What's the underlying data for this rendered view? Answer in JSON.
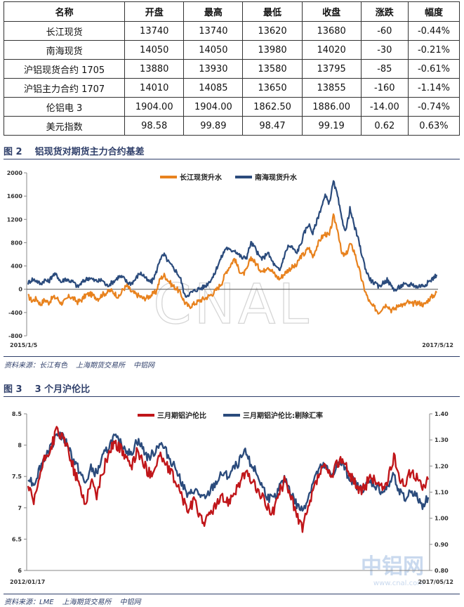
{
  "table": {
    "headers": [
      "名称",
      "开盘",
      "最高",
      "最低",
      "收盘",
      "涨跌",
      "幅度"
    ],
    "rows": [
      [
        "长江现货",
        "13740",
        "13740",
        "13620",
        "13680",
        "-60",
        "-0.44%"
      ],
      [
        "南海现货",
        "14050",
        "14050",
        "13980",
        "14020",
        "-30",
        "-0.21%"
      ],
      [
        "沪铝现货合约 1705",
        "13880",
        "13930",
        "13580",
        "13795",
        "-85",
        "-0.61%"
      ],
      [
        "沪铝主力合约 1707",
        "14010",
        "14085",
        "13650",
        "13855",
        "-160",
        "-1.14%"
      ],
      [
        "伦铝电 3",
        "1904.00",
        "1904.00",
        "1862.50",
        "1886.00",
        "-14.00",
        "-0.74%"
      ],
      [
        "美元指数",
        "98.58",
        "99.89",
        "98.47",
        "99.19",
        "0.62",
        "0.63%"
      ]
    ]
  },
  "fig2": {
    "number": "图 2",
    "title": "铝现货对期货主力合约基差",
    "source": [
      "资料来源：长江有色",
      "上海期货交易所",
      "中铝网"
    ]
  },
  "fig3": {
    "number": "图 3",
    "title": "3 个月沪伦比",
    "source": [
      "资料来源：LME",
      "上海期货交易所",
      "中铝网"
    ]
  },
  "watermarks": {
    "chart1": "CNAL",
    "chart2_main": "中铝网",
    "chart2_url": "www.cnal.com"
  },
  "chart_data": [
    {
      "type": "line",
      "xlabel": "",
      "ylabel": "",
      "x_range": [
        "2015/1/5",
        "2017/5/12"
      ],
      "x_tick_labels": [
        "2015/1/5",
        "2017/5/12"
      ],
      "ylim": [
        -800,
        2000
      ],
      "yticks": [
        -800,
        -400,
        0,
        400,
        800,
        1200,
        1600,
        2000
      ],
      "legend_position": "top-center",
      "grid": false,
      "series": [
        {
          "name": "长江现货升水",
          "color": "#e8821e",
          "values": [
            -120,
            -200,
            -160,
            -260,
            -180,
            -230,
            -140,
            -150,
            -240,
            -200,
            -120,
            -160,
            -220,
            -180,
            -100,
            -80,
            -120,
            -160,
            -90,
            -60,
            -20,
            -70,
            -140,
            0,
            60,
            -40,
            -80,
            -120,
            -160,
            -140,
            -90,
            -50,
            180,
            240,
            150,
            60,
            10,
            -80,
            -230,
            -300,
            -260,
            -220,
            -180,
            -150,
            -110,
            -60,
            20,
            120,
            300,
            410,
            530,
            350,
            250,
            330,
            550,
            460,
            360,
            300,
            400,
            330,
            230,
            180,
            260,
            330,
            380,
            400,
            560,
            610,
            720,
            560,
            740,
            880,
            950,
            920,
            1250,
            1040,
            600,
            580,
            780,
            660,
            400,
            120,
            -100,
            -260,
            -320,
            -400,
            -300,
            -260,
            -360,
            -330,
            -250,
            -280,
            -220,
            -260,
            -230,
            -240,
            -270,
            -180,
            -120,
            -60
          ]
        },
        {
          "name": "南海现货升水",
          "color": "#2b4b7c",
          "values": [
            110,
            170,
            150,
            90,
            160,
            130,
            250,
            240,
            120,
            180,
            150,
            120,
            40,
            110,
            170,
            200,
            150,
            140,
            160,
            60,
            100,
            150,
            220,
            200,
            120,
            100,
            170,
            280,
            240,
            140,
            130,
            280,
            530,
            590,
            470,
            380,
            300,
            170,
            -120,
            -80,
            -40,
            0,
            20,
            60,
            140,
            230,
            420,
            570,
            720,
            660,
            680,
            600,
            530,
            560,
            800,
            710,
            560,
            520,
            640,
            500,
            380,
            320,
            560,
            740,
            720,
            620,
            760,
            980,
            1120,
            960,
            1180,
            1400,
            1600,
            1480,
            1850,
            1600,
            1200,
            1000,
            1380,
            1100,
            860,
            560,
            300,
            160,
            100,
            40,
            110,
            160,
            60,
            -20,
            40,
            80,
            60,
            100,
            40,
            60,
            70,
            120,
            180,
            250
          ]
        }
      ]
    },
    {
      "type": "line",
      "xlabel": "",
      "ylabel": "",
      "x_range": [
        "2012/01/17",
        "2017/05/12"
      ],
      "x_tick_labels": [
        "2012/01/17",
        "2017/05/12"
      ],
      "ylim": [
        6,
        8.5
      ],
      "yticks": [
        6,
        6.5,
        7,
        7.5,
        8,
        8.5
      ],
      "y2lim": [
        0.8,
        1.4
      ],
      "y2ticks": [
        "0.80",
        "0.90",
        "1.00",
        "1.10",
        "1.20",
        "1.30",
        "1.40"
      ],
      "legend_position": "top-center",
      "grid": false,
      "series": [
        {
          "name": "三月期铝沪伦比",
          "color": "#c0161a",
          "axis": "left",
          "values": [
            7.35,
            7.05,
            7.5,
            7.8,
            7.95,
            8.25,
            8.1,
            7.95,
            7.6,
            7.35,
            7.05,
            7.45,
            7.2,
            7.55,
            7.85,
            8.05,
            7.95,
            7.85,
            7.6,
            7.9,
            7.75,
            7.55,
            7.6,
            7.85,
            7.7,
            7.55,
            7.4,
            7.15,
            6.95,
            7.1,
            6.9,
            6.75,
            6.95,
            7.05,
            7.15,
            7.1,
            7.25,
            7.4,
            7.55,
            7.45,
            7.3,
            7.15,
            7.0,
            6.95,
            7.25,
            7.45,
            7.2,
            6.85,
            6.7,
            6.95,
            7.3,
            7.55,
            7.65,
            7.45,
            7.7,
            7.8,
            7.55,
            7.45,
            7.25,
            7.35,
            7.5,
            7.4,
            7.3,
            7.45,
            7.8,
            7.5,
            7.35,
            7.6,
            7.5,
            7.3,
            7.45
          ]
        },
        {
          "name": "三月期铝沪伦比:剔除汇率",
          "color": "#2b4b7c",
          "axis": "right",
          "values": [
            1.16,
            1.13,
            1.19,
            1.24,
            1.27,
            1.33,
            1.31,
            1.28,
            1.22,
            1.18,
            1.13,
            1.19,
            1.17,
            1.23,
            1.27,
            1.31,
            1.29,
            1.27,
            1.24,
            1.3,
            1.27,
            1.23,
            1.25,
            1.29,
            1.26,
            1.22,
            1.19,
            1.13,
            1.08,
            1.11,
            1.09,
            1.07,
            1.11,
            1.14,
            1.17,
            1.16,
            1.19,
            1.22,
            1.25,
            1.21,
            1.17,
            1.12,
            1.08,
            1.07,
            1.12,
            1.15,
            1.1,
            1.05,
            1.03,
            1.08,
            1.15,
            1.19,
            1.2,
            1.16,
            1.2,
            1.21,
            1.16,
            1.14,
            1.11,
            1.12,
            1.14,
            1.12,
            1.1,
            1.12,
            1.17,
            1.1,
            1.07,
            1.11,
            1.08,
            1.05,
            1.08
          ]
        }
      ]
    }
  ]
}
